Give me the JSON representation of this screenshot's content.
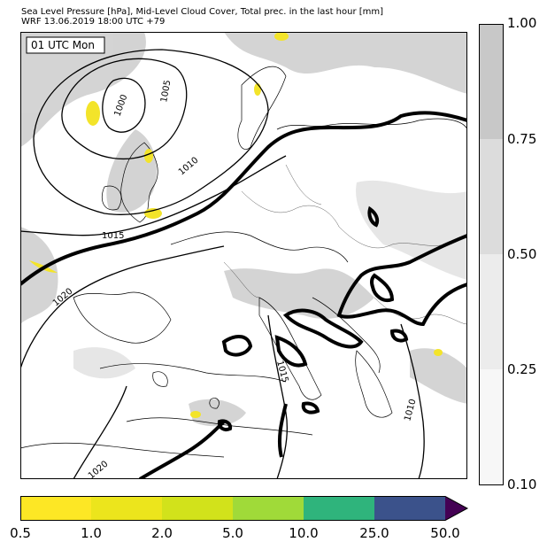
{
  "header": {
    "line1": "Sea Level Pressure [hPa], Mid-Level Cloud Cover, Total prec. in the last hour [mm]",
    "line2": "WRF 13.06.2019 18:00 UTC +79"
  },
  "map": {
    "time_label": "01 UTC Mon",
    "isobar_labels": [
      "1000",
      "1005",
      "1010",
      "1015",
      "1020",
      "1015",
      "1010",
      "1020"
    ]
  },
  "cloud_colorbar": {
    "ticks": [
      "1.00",
      "0.75",
      "0.50",
      "0.25",
      "0.10"
    ],
    "colors": [
      "#c8c8c8",
      "#dcdcdc",
      "#ececec",
      "#f7f7f7"
    ]
  },
  "precip_colorbar": {
    "ticks": [
      "0.5",
      "1.0",
      "2.0",
      "5.0",
      "10.0",
      "25.0",
      "50.0"
    ],
    "colors": [
      "#fde725",
      "#ece51c",
      "#d2e21b",
      "#a0da39",
      "#2fb47c",
      "#3b528b",
      "#440154"
    ]
  }
}
